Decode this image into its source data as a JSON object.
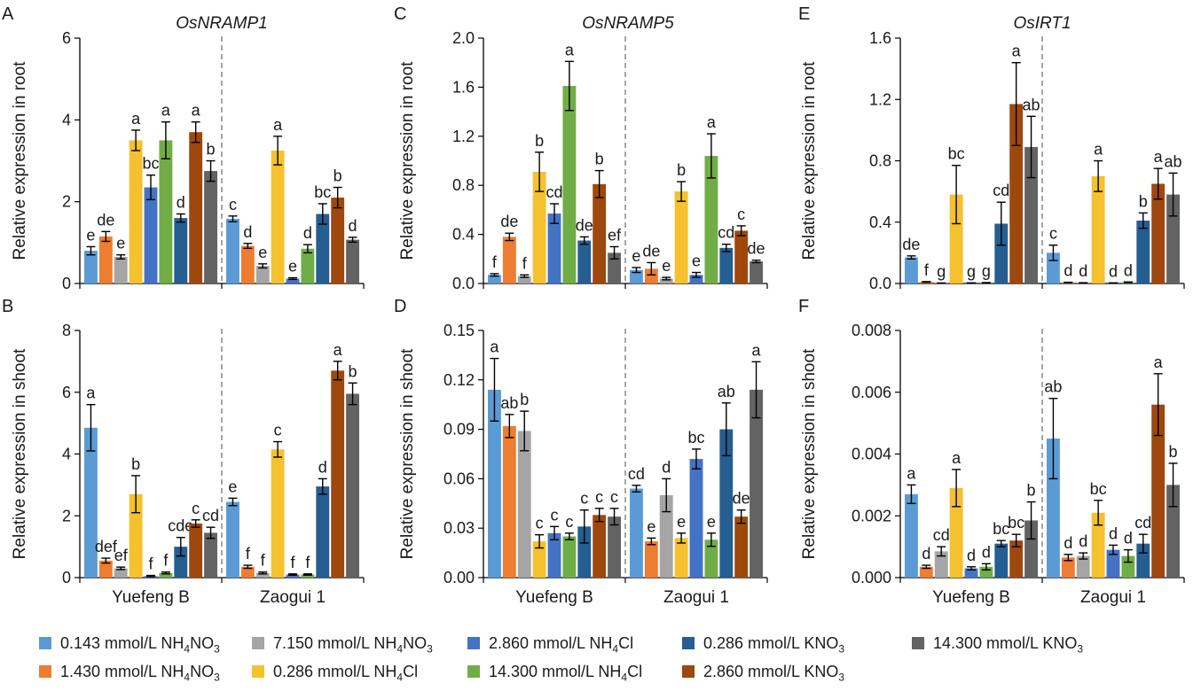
{
  "colors": [
    "#5b9bd5",
    "#ed7d31",
    "#a5a5a5",
    "#f5c12e",
    "#4472c4",
    "#70ad47",
    "#255e91",
    "#9e480e",
    "#636363"
  ],
  "legend": [
    {
      "prefix": "0.143 mmol/L NH",
      "s1": "4",
      "mid": "NO",
      "s2": "3"
    },
    {
      "prefix": "1.430 mmol/L NH",
      "s1": "4",
      "mid": "NO",
      "s2": "3"
    },
    {
      "prefix": "7.150 mmol/L NH",
      "s1": "4",
      "mid": "NO",
      "s2": "3"
    },
    {
      "prefix": "0.286 mmol/L NH",
      "s1": "4",
      "mid": "Cl",
      "s2": ""
    },
    {
      "prefix": "2.860 mmol/L NH",
      "s1": "4",
      "mid": "Cl",
      "s2": ""
    },
    {
      "prefix": "14.300 mmol/L NH",
      "s1": "4",
      "mid": "Cl",
      "s2": ""
    },
    {
      "prefix": "0.286 mmol/L KNO",
      "s1": "3",
      "mid": "",
      "s2": ""
    },
    {
      "prefix": "2.860 mmol/L KNO",
      "s1": "3",
      "mid": "",
      "s2": ""
    },
    {
      "prefix": "14.300 mmol/L KNO",
      "s1": "3",
      "mid": "",
      "s2": ""
    }
  ],
  "chart_data": [
    {
      "type": "bar",
      "panel": "A",
      "title": "OsNRAMP1",
      "ylabel": "Relative expression in root",
      "ylim": [
        0,
        6
      ],
      "yticks": [
        "0",
        "2",
        "4",
        "6"
      ],
      "categories": [
        "Yuefeng B",
        "Zaogui 1"
      ],
      "show_categories": false,
      "values": [
        [
          0.8,
          1.15,
          0.65,
          3.5,
          2.35,
          3.5,
          1.6,
          3.7,
          2.75
        ],
        [
          1.58,
          0.92,
          0.43,
          3.25,
          0.12,
          0.85,
          1.7,
          2.1,
          1.07
        ]
      ],
      "errors": [
        [
          0.1,
          0.12,
          0.05,
          0.25,
          0.3,
          0.45,
          0.1,
          0.25,
          0.25
        ],
        [
          0.07,
          0.06,
          0.05,
          0.35,
          0.02,
          0.1,
          0.25,
          0.25,
          0.06
        ]
      ],
      "letters": [
        [
          "e",
          "de",
          "e",
          "a",
          "bc",
          "a",
          "d",
          "a",
          "b"
        ],
        [
          "c",
          "d",
          "e",
          "a",
          "e",
          "d",
          "bc",
          "b",
          "d"
        ]
      ]
    },
    {
      "type": "bar",
      "panel": "B",
      "title": "",
      "ylabel": "Relative expression in shoot",
      "ylim": [
        0,
        8
      ],
      "yticks": [
        "0",
        "2",
        "4",
        "6",
        "8"
      ],
      "categories": [
        "Yuefeng B",
        "Zaogui 1"
      ],
      "show_categories": true,
      "values": [
        [
          4.85,
          0.55,
          0.3,
          2.7,
          0.05,
          0.15,
          1.0,
          1.75,
          1.45
        ],
        [
          2.45,
          0.35,
          0.15,
          4.15,
          0.1,
          0.1,
          2.95,
          6.7,
          5.95
        ]
      ],
      "errors": [
        [
          0.75,
          0.08,
          0.04,
          0.6,
          0.02,
          0.03,
          0.3,
          0.12,
          0.18
        ],
        [
          0.12,
          0.05,
          0.03,
          0.25,
          0.02,
          0.02,
          0.25,
          0.3,
          0.35
        ]
      ],
      "letters": [
        [
          "a",
          "def",
          "ef",
          "b",
          "f",
          "f",
          "cde",
          "c",
          "cd"
        ],
        [
          "e",
          "f",
          "f",
          "c",
          "f",
          "f",
          "d",
          "a",
          "b"
        ]
      ]
    },
    {
      "type": "bar",
      "panel": "C",
      "title": "OsNRAMP5",
      "ylabel": "Relative expression in root",
      "ylim": [
        0,
        2
      ],
      "yticks": [
        "0.0",
        "0.4",
        "0.8",
        "1.2",
        "1.6",
        "2.0"
      ],
      "categories": [
        "Yuefeng B",
        "Zaogui 1"
      ],
      "show_categories": false,
      "values": [
        [
          0.07,
          0.38,
          0.06,
          0.91,
          0.57,
          1.61,
          0.35,
          0.81,
          0.25
        ],
        [
          0.11,
          0.12,
          0.04,
          0.75,
          0.07,
          1.04,
          0.29,
          0.43,
          0.18
        ]
      ],
      "errors": [
        [
          0.01,
          0.03,
          0.01,
          0.16,
          0.08,
          0.2,
          0.03,
          0.11,
          0.05
        ],
        [
          0.02,
          0.05,
          0.01,
          0.08,
          0.02,
          0.18,
          0.03,
          0.04,
          0.01
        ]
      ],
      "letters": [
        [
          "f",
          "de",
          "f",
          "b",
          "cd",
          "a",
          "de",
          "b",
          "ef"
        ],
        [
          "e",
          "de",
          "e",
          "b",
          "e",
          "a",
          "cd",
          "c",
          "de"
        ]
      ]
    },
    {
      "type": "bar",
      "panel": "D",
      "title": "",
      "ylabel": "Relative expression in shoot",
      "ylim": [
        0,
        0.15
      ],
      "yticks": [
        "0.00",
        "0.03",
        "0.06",
        "0.09",
        "0.12",
        "0.15"
      ],
      "categories": [
        "Yuefeng B",
        "Zaogui 1"
      ],
      "show_categories": true,
      "values": [
        [
          0.114,
          0.092,
          0.089,
          0.022,
          0.027,
          0.025,
          0.031,
          0.038,
          0.037
        ],
        [
          0.054,
          0.022,
          0.05,
          0.024,
          0.072,
          0.023,
          0.09,
          0.037,
          0.114
        ]
      ],
      "errors": [
        [
          0.019,
          0.007,
          0.012,
          0.004,
          0.004,
          0.002,
          0.01,
          0.004,
          0.005
        ],
        [
          0.002,
          0.002,
          0.01,
          0.003,
          0.006,
          0.004,
          0.016,
          0.004,
          0.017
        ]
      ],
      "letters": [
        [
          "a",
          "ab",
          "b",
          "c",
          "c",
          "c",
          "c",
          "c",
          "c"
        ],
        [
          "cd",
          "e",
          "d",
          "e",
          "bc",
          "e",
          "ab",
          "de",
          "a"
        ]
      ]
    },
    {
      "type": "bar",
      "panel": "E",
      "title": "OsIRT1",
      "ylabel": "Relative expression in root",
      "ylim": [
        0,
        1.6
      ],
      "yticks": [
        "0.0",
        "0.4",
        "0.8",
        "1.2",
        "1.6"
      ],
      "categories": [
        "Yuefeng B",
        "Zaogui 1"
      ],
      "show_categories": false,
      "values": [
        [
          0.17,
          0.01,
          0.002,
          0.58,
          0.003,
          0.005,
          0.39,
          1.17,
          0.89
        ],
        [
          0.2,
          0.007,
          0.004,
          0.7,
          0.003,
          0.008,
          0.41,
          0.65,
          0.58
        ]
      ],
      "errors": [
        [
          0.01,
          0.002,
          0.001,
          0.19,
          0.001,
          0.001,
          0.14,
          0.27,
          0.2
        ],
        [
          0.05,
          0.001,
          0.001,
          0.1,
          0.001,
          0.002,
          0.05,
          0.1,
          0.14
        ]
      ],
      "letters": [
        [
          "de",
          "f",
          "g",
          "bc",
          "g",
          "g",
          "cd",
          "a",
          "ab"
        ],
        [
          "c",
          "d",
          "d",
          "a",
          "d",
          "d",
          "b",
          "a",
          "ab"
        ]
      ]
    },
    {
      "type": "bar",
      "panel": "F",
      "title": "",
      "ylabel": "Relative expression in shoot",
      "ylim": [
        0,
        0.008
      ],
      "yticks": [
        "0.000",
        "0.002",
        "0.004",
        "0.006",
        "0.008"
      ],
      "categories": [
        "Yuefeng B",
        "Zaogui 1"
      ],
      "show_categories": true,
      "values": [
        [
          0.0027,
          0.00035,
          0.00085,
          0.0029,
          0.0003,
          0.00035,
          0.0011,
          0.0012,
          0.00185
        ],
        [
          0.0045,
          0.00065,
          0.0007,
          0.0021,
          0.0009,
          0.0007,
          0.0011,
          0.0056,
          0.003
        ]
      ],
      "errors": [
        [
          0.0003,
          5e-05,
          0.00015,
          0.0006,
          5e-05,
          0.0001,
          0.0001,
          0.0002,
          0.0006
        ],
        [
          0.0013,
          0.0001,
          0.0001,
          0.0004,
          0.00015,
          0.0002,
          0.0003,
          0.001,
          0.0007
        ]
      ],
      "letters": [
        [
          "a",
          "d",
          "cd",
          "a",
          "d",
          "d",
          "bc",
          "bc",
          "b"
        ],
        [
          "ab",
          "d",
          "d",
          "bc",
          "d",
          "d",
          "cd",
          "a",
          "b"
        ]
      ]
    }
  ]
}
